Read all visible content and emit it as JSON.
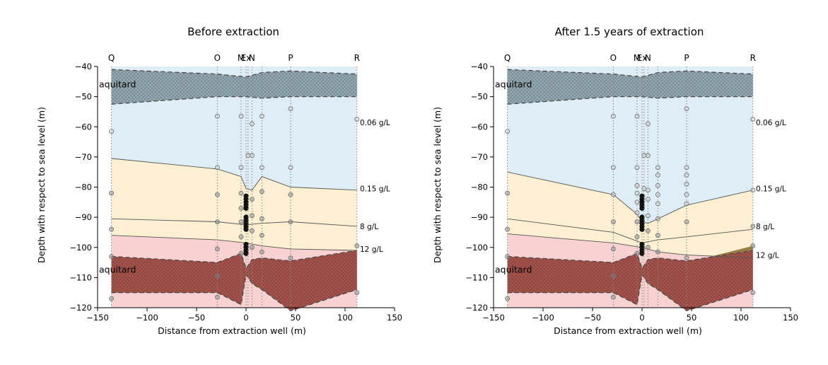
{
  "colors": {
    "freshwater": "#deedf6",
    "brackish": "#fcefd2",
    "saline": "#f7d2d0",
    "aquitard_top": "#93a9b4",
    "aquitard_bottom": "#a7524a",
    "saline_pocket": "#9a7f45",
    "boundary_line": "#555555"
  },
  "chart_data": [
    {
      "type": "area",
      "title": "Before extraction",
      "xlabel": "Distance from extraction well (m)",
      "ylabel": "Depth with respect to sea level (m)",
      "xlim": [
        -150,
        150
      ],
      "ylim": [
        -120,
        -40
      ],
      "xticks": [
        -150,
        -100,
        -50,
        0,
        50,
        100,
        150
      ],
      "yticks": [
        -40,
        -50,
        -60,
        -70,
        -80,
        -90,
        -100,
        -110,
        -120
      ],
      "grid": false,
      "wells": [
        {
          "name": "Q",
          "x": -136,
          "samples": [
            -61.5,
            -82,
            -94,
            -103,
            -117
          ]
        },
        {
          "name": "O",
          "x": -29,
          "samples": [
            -56.5,
            -73.5,
            -82.5,
            -91.5,
            -100.5,
            -109.5,
            -116.5
          ]
        },
        {
          "name": "M",
          "x": -5,
          "samples": [
            -56.5,
            -73.5,
            -82,
            -87,
            -91.5,
            -96.5,
            -102
          ]
        },
        {
          "name": "Ex",
          "x": 0,
          "samples": [
            -83,
            -84,
            -85,
            -86,
            -87,
            -90,
            -91,
            -92,
            -93,
            -94,
            -99,
            -100,
            -101,
            -102
          ]
        },
        {
          "name": "N",
          "x": 6,
          "samples": [
            -59,
            -69.5,
            -84,
            -89.5,
            -94.5,
            -100
          ]
        },
        {
          "name": "",
          "x": 2,
          "samples": [
            -69.5
          ]
        },
        {
          "name": "",
          "x": 16,
          "samples": [
            -56.5,
            -73.5,
            -81.5,
            -90.5,
            -96,
            -101.5
          ]
        },
        {
          "name": "P",
          "x": 45,
          "samples": [
            -54,
            -73.5,
            -82.5,
            -91.5,
            -103.5
          ]
        },
        {
          "name": "R",
          "x": 112,
          "samples": [
            -57.5,
            -99.5,
            -115
          ]
        }
      ],
      "aquitard_top": {
        "label": "aquitard",
        "x": [
          -136,
          -29,
          0,
          16,
          45,
          112
        ],
        "top": [
          -41,
          -42.5,
          -43.5,
          -42,
          -41.5,
          -42.5
        ],
        "bottom": [
          -52.5,
          -50,
          -50,
          -50.5,
          -50,
          -50
        ]
      },
      "aquitard_bottom": {
        "label": "aquitard",
        "x": [
          -136,
          -29,
          -5,
          0,
          6,
          16,
          45,
          112
        ],
        "top": [
          -103,
          -105,
          -102,
          -107,
          -104,
          -103.5,
          -104.5,
          -101
        ],
        "bottom": [
          -115,
          -115,
          -119,
          -109,
          -112,
          -114,
          -121,
          -114
        ]
      },
      "boundaries": [
        {
          "label": "0.06 g/L",
          "label_y": -58.5,
          "x": [],
          "y": []
        },
        {
          "label": "0.15 g/L",
          "label_y": -80.5,
          "x": [
            -136,
            -29,
            -5,
            0,
            6,
            16,
            45,
            112
          ],
          "y": [
            -70.5,
            -74,
            -76.5,
            -80.5,
            -81,
            -76.5,
            -80,
            -81
          ]
        },
        {
          "label": "8 g/L",
          "label_y": -93,
          "x": [
            -136,
            -29,
            0,
            16,
            45,
            112
          ],
          "y": [
            -90.5,
            -91.5,
            -92.5,
            -92,
            -91.5,
            -93
          ]
        },
        {
          "label": "12 g/L",
          "label_y": -100.5,
          "x": [
            -136,
            -29,
            0,
            16,
            45,
            112
          ],
          "y": [
            -96,
            -97.5,
            -98.5,
            -99.5,
            -100.5,
            -101
          ]
        }
      ],
      "annotations": [
        "aquitard",
        "aquitard"
      ]
    },
    {
      "type": "area",
      "title": "After 1.5 years of extraction",
      "xlabel": "Distance from extraction well (m)",
      "ylabel": "Depth with respect to sea level (m)",
      "xlim": [
        -150,
        150
      ],
      "ylim": [
        -120,
        -40
      ],
      "xticks": [
        -150,
        -100,
        -50,
        0,
        50,
        100,
        150
      ],
      "yticks": [
        -40,
        -50,
        -60,
        -70,
        -80,
        -90,
        -100,
        -110,
        -120
      ],
      "grid": false,
      "wells": [
        {
          "name": "Q",
          "x": -136,
          "samples": [
            -61.5,
            -82,
            -94,
            -103,
            -117
          ]
        },
        {
          "name": "O",
          "x": -29,
          "samples": [
            -56.5,
            -73.5,
            -82.5,
            -91.5,
            -100.5,
            -109.5,
            -116.5
          ]
        },
        {
          "name": "M",
          "x": -5,
          "samples": [
            -56.5,
            -73.5,
            -79.5,
            -82,
            -85,
            -88.5,
            -91.5,
            -96.5,
            -102
          ]
        },
        {
          "name": "Ex",
          "x": 0,
          "samples": [
            -83,
            -84,
            -85,
            -86,
            -87,
            -90,
            -91,
            -92,
            -93,
            -94,
            -99,
            -100,
            -101,
            -102
          ]
        },
        {
          "name": "N",
          "x": 6,
          "samples": [
            -59,
            -69.5,
            -81,
            -84,
            -89.5,
            -94.5,
            -100
          ]
        },
        {
          "name": "",
          "x": 2,
          "samples": [
            -69.5,
            -80.5
          ]
        },
        {
          "name": "",
          "x": 16,
          "samples": [
            -73.5,
            -76,
            -79.5,
            -82.5,
            -85.5,
            -90.5,
            -96,
            -101.5
          ]
        },
        {
          "name": "P",
          "x": 45,
          "samples": [
            -54,
            -73.5,
            -76,
            -79,
            -82.5,
            -85.5,
            -91.5,
            -103.5
          ]
        },
        {
          "name": "R",
          "x": 112,
          "samples": [
            -57.5,
            -81,
            -93,
            -99.5,
            -115
          ]
        }
      ],
      "aquitard_top": {
        "label": "aquitard",
        "x": [
          -136,
          -29,
          0,
          16,
          45,
          112
        ],
        "top": [
          -41,
          -42.5,
          -43.5,
          -42,
          -41.5,
          -42.5
        ],
        "bottom": [
          -52.5,
          -50,
          -50,
          -50.5,
          -50,
          -50
        ]
      },
      "aquitard_bottom": {
        "label": "aquitard",
        "x": [
          -136,
          -29,
          -5,
          0,
          6,
          16,
          45,
          112
        ],
        "top": [
          -103,
          -105,
          -102,
          -107,
          -104,
          -103.5,
          -104.5,
          -101
        ],
        "bottom": [
          -115,
          -115,
          -119,
          -109,
          -112,
          -114,
          -121,
          -114
        ]
      },
      "boundaries": [
        {
          "label": "0.06 g/L",
          "label_y": -58.5,
          "x": [],
          "y": []
        },
        {
          "label": "0.15 g/L",
          "label_y": -80.5,
          "x": [
            -136,
            -29,
            -5,
            0,
            6,
            16,
            45,
            112
          ],
          "y": [
            -75,
            -82.5,
            -89,
            -91.5,
            -92,
            -90.5,
            -86,
            -81
          ]
        },
        {
          "label": "8 g/L",
          "label_y": -93,
          "x": [
            -136,
            -29,
            0,
            16,
            45,
            112
          ],
          "y": [
            -90.5,
            -95,
            -98.5,
            -97.5,
            -96.5,
            -94
          ]
        },
        {
          "label": "12 g/L",
          "label_y": -102.5,
          "x": [
            -136,
            -29,
            0,
            16,
            45,
            112
          ],
          "y": [
            -95.5,
            -98.5,
            -100,
            -101.5,
            -102.5,
            -103.5
          ]
        }
      ],
      "saline_pocket": {
        "x": [
          70,
          112,
          112
        ],
        "y": [
          -103,
          -103.5,
          -99.5
        ]
      },
      "annotations": [
        "aquitard",
        "aquitard"
      ]
    }
  ]
}
